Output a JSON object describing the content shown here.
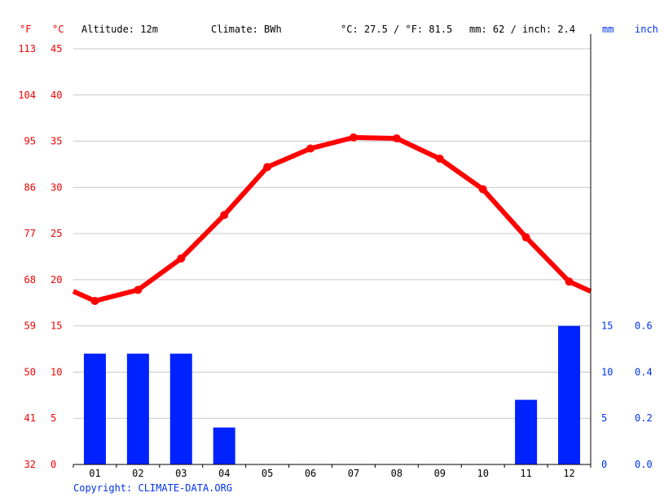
{
  "header": {
    "unit_f": "°F",
    "unit_c": "°C",
    "altitude": "Altitude: 12m",
    "climate": "Climate: BWh",
    "temp_summary": "°C: 27.5 / °F: 81.5",
    "precip_summary": "mm: 62 / inch: 2.4",
    "unit_mm": "mm",
    "unit_inch": "inch"
  },
  "copyright": "Copyright: CLIMATE-DATA.ORG",
  "colors": {
    "temperature": "#ff0000",
    "precipitation": "#0022ff",
    "grid": "#c8c8c8",
    "axis": "#000000"
  },
  "chart_data": {
    "type": "bar+line",
    "categories": [
      "01",
      "02",
      "03",
      "04",
      "05",
      "06",
      "07",
      "08",
      "09",
      "10",
      "11",
      "12"
    ],
    "axes": {
      "celsius_ticks": [
        0,
        5,
        10,
        15,
        20,
        25,
        30,
        35,
        40,
        45
      ],
      "fahrenheit_ticks": [
        32,
        41,
        50,
        59,
        68,
        77,
        86,
        95,
        104,
        113
      ],
      "mm_ticks": [
        0,
        5,
        10,
        15
      ],
      "inch_ticks": [
        "0.0",
        "0.2",
        "0.4",
        "0.6"
      ],
      "temperature_ylim": [
        0,
        45
      ],
      "precipitation_ylim": [
        0,
        15
      ]
    },
    "series": [
      {
        "kind": "line",
        "unit": "°C",
        "values": [
          17.7,
          18.9,
          22.3,
          27.0,
          32.2,
          34.2,
          35.4,
          35.3,
          33.1,
          29.8,
          24.6,
          19.8
        ]
      },
      {
        "kind": "bar",
        "unit": "mm",
        "values": [
          12,
          12,
          12,
          4,
          0,
          0,
          0,
          0,
          0,
          0,
          7,
          15
        ]
      }
    ],
    "grid": true
  }
}
